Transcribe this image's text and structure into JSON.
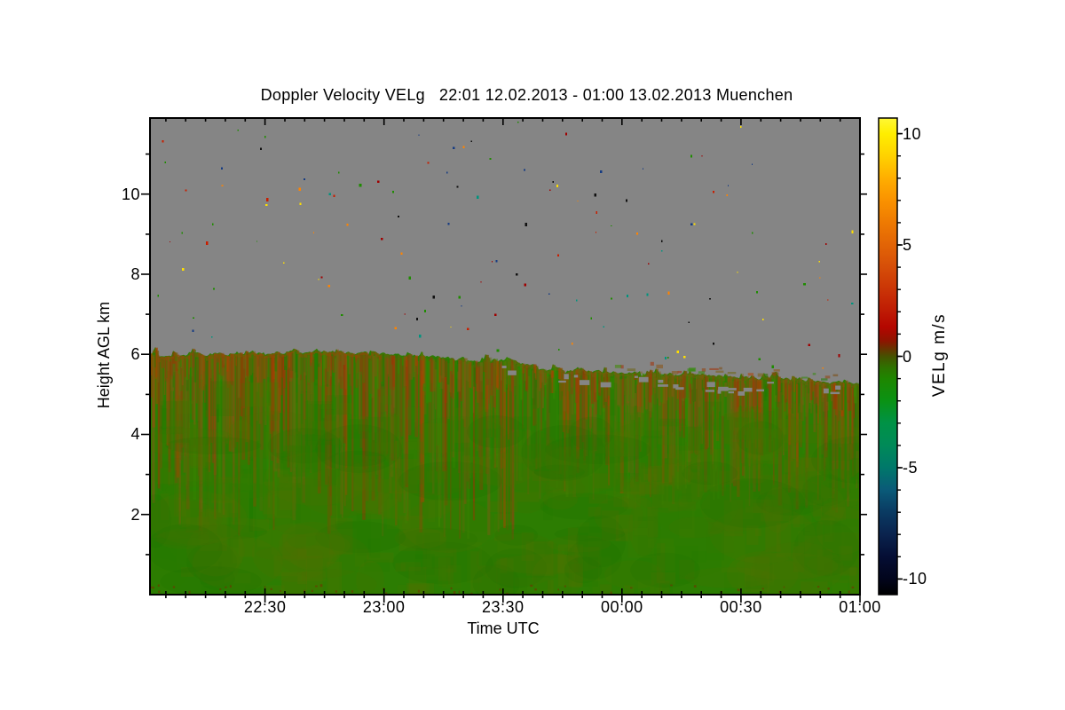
{
  "title": "Doppler Velocity VELg   22:01 12.02.2013 - 01:00 13.02.2013 Muenchen",
  "axes": {
    "x": {
      "label": "Time UTC",
      "start_utc": "22:01",
      "end_utc": "01:00",
      "duration_min": 179,
      "minor_step_min": 5,
      "majors": [
        {
          "t": 29,
          "label": "22:30"
        },
        {
          "t": 59,
          "label": "23:00"
        },
        {
          "t": 89,
          "label": "23:30"
        },
        {
          "t": 119,
          "label": "00:00"
        },
        {
          "t": 149,
          "label": "00:30"
        },
        {
          "t": 179,
          "label": "01:00"
        }
      ]
    },
    "y": {
      "label": "Height AGL km",
      "min_km": 0,
      "max_km": 11.9,
      "majors": [
        {
          "km": 2,
          "label": "2"
        },
        {
          "km": 4,
          "label": "4"
        },
        {
          "km": 6,
          "label": "6"
        },
        {
          "km": 8,
          "label": "8"
        },
        {
          "km": 10,
          "label": "10"
        }
      ],
      "minors_km": [
        1,
        3,
        5,
        7,
        9,
        11
      ]
    }
  },
  "colorbar": {
    "label": "VELg m/s",
    "vmin": -10.7,
    "vmax": 10.7,
    "minor_step": 1,
    "majors": [
      {
        "v": 10,
        "label": "10"
      },
      {
        "v": 5,
        "label": "5"
      },
      {
        "v": 0,
        "label": "0"
      },
      {
        "v": -5,
        "label": "-5"
      },
      {
        "v": -10,
        "label": "-10"
      }
    ],
    "stops": [
      {
        "v": 10.7,
        "c": "#FFF835"
      },
      {
        "v": 10,
        "c": "#FFEE00"
      },
      {
        "v": 9,
        "c": "#FFD200"
      },
      {
        "v": 8,
        "c": "#FFAE00"
      },
      {
        "v": 7,
        "c": "#FA9200"
      },
      {
        "v": 6,
        "c": "#EE7A02"
      },
      {
        "v": 5,
        "c": "#E26406"
      },
      {
        "v": 4,
        "c": "#D64E08"
      },
      {
        "v": 3,
        "c": "#CA3406"
      },
      {
        "v": 2,
        "c": "#BE1A04"
      },
      {
        "v": 1.3,
        "c": "#B40600"
      },
      {
        "v": 0.7,
        "c": "#8E1400"
      },
      {
        "v": 0.3,
        "c": "#643600"
      },
      {
        "v": 0,
        "c": "#465200"
      },
      {
        "v": -0.5,
        "c": "#2E7200"
      },
      {
        "v": -1,
        "c": "#1E8600"
      },
      {
        "v": -2,
        "c": "#0A9214"
      },
      {
        "v": -3,
        "c": "#009246"
      },
      {
        "v": -4,
        "c": "#008A58"
      },
      {
        "v": -5,
        "c": "#00786A"
      },
      {
        "v": -6,
        "c": "#0A5A78"
      },
      {
        "v": -7,
        "c": "#0A3A62"
      },
      {
        "v": -8,
        "c": "#0A234E"
      },
      {
        "v": -9,
        "c": "#050E34"
      },
      {
        "v": -10,
        "c": "#02051C"
      },
      {
        "v": -10.7,
        "c": "#000000"
      }
    ]
  },
  "colors": {
    "plot_bg_gray": "#858585",
    "field_base_green": "#2C7D02",
    "axis_black": "#000000",
    "page_bg": "#ffffff"
  },
  "texture": {
    "curtain_count": 900,
    "warm": [
      "#93400A",
      "#A33004",
      "#7C4A0E",
      "#B04000",
      "#8A5210"
    ],
    "cool": [
      "#6E6410",
      "#5A6A08",
      "#2E8A02",
      "#1E7A02",
      "#7C5E14",
      "#3E8A00"
    ],
    "mottle": [
      "#5C6E00",
      "#3E7A00",
      "#207C02",
      "#587000"
    ],
    "deep": [
      "#4A6F00",
      "#177000",
      "#2F7D02",
      "#5A6E00"
    ],
    "rim_left": "#9A4A06",
    "rim_right": "#7C5C10",
    "bottom_speck": "#7A2A00"
  },
  "speckles": {
    "count": 130,
    "colors": [
      "#101010",
      "#C81E00",
      "#FF8400",
      "#FFE000",
      "#1E8C00",
      "#00947E",
      "#163C82",
      "#A00000"
    ]
  },
  "chart_data": {
    "type": "heatmap",
    "title": "Doppler Velocity VELg   22:01 12.02.2013 - 01:00 13.02.2013 Muenchen",
    "site": "Muenchen",
    "xlabel": "Time UTC",
    "ylabel": "Height AGL km",
    "x_range_utc": [
      "22:01 12.02.2013",
      "01:00 13.02.2013"
    ],
    "x_ticks": [
      "22:30",
      "23:00",
      "23:30",
      "00:00",
      "00:30",
      "01:00"
    ],
    "y_range_km": [
      0,
      11.9
    ],
    "y_ticks_km": [
      2,
      4,
      6,
      8,
      10
    ],
    "value_label": "VELg m/s",
    "value_range": [
      -10.7,
      10.7
    ],
    "value_ticks": [
      -10,
      -5,
      0,
      5,
      10
    ],
    "cloud_top_km": {
      "times_utc": [
        "22:01",
        "22:10",
        "22:20",
        "22:30",
        "22:40",
        "22:50",
        "23:00",
        "23:10",
        "23:20",
        "23:30",
        "23:40",
        "23:50",
        "00:00",
        "00:10",
        "00:20",
        "00:30",
        "00:40",
        "00:50",
        "01:00"
      ],
      "heights_km": [
        6.0,
        6.0,
        6.02,
        6.05,
        6.08,
        6.04,
        6.0,
        5.95,
        5.9,
        5.85,
        5.65,
        5.6,
        5.55,
        5.5,
        5.5,
        5.42,
        5.4,
        5.32,
        5.27
      ]
    },
    "field_summary": [
      {
        "region": "above cloud top",
        "appearance": "uniform gray (no signal) with sparse 1-2 px noise speckles of yellow/orange/red/green/teal/blue/black"
      },
      {
        "region": "within ~1.5 km below cloud top",
        "velocity_m_s": "+0.3 to +2",
        "appearance": "red-brown / olive vertical streak curtains, strongest 22:01-23:30 and 00:15-01:00"
      },
      {
        "region": "bulk of cloud layer down to surface",
        "velocity_m_s": "-0.5 to -1.5",
        "appearance": "mostly uniform green with subtle olive mottling"
      }
    ]
  }
}
